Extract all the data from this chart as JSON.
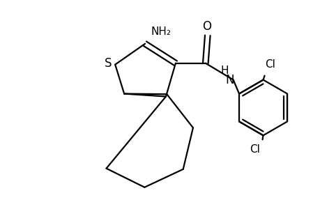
{
  "background_color": "#ffffff",
  "line_color": "#000000",
  "line_width": 1.6,
  "font_size": 12,
  "figsize": [
    4.6,
    3.0
  ],
  "dpi": 100,
  "xlim": [
    0.2,
    4.8
  ],
  "ylim": [
    -0.15,
    2.6
  ]
}
